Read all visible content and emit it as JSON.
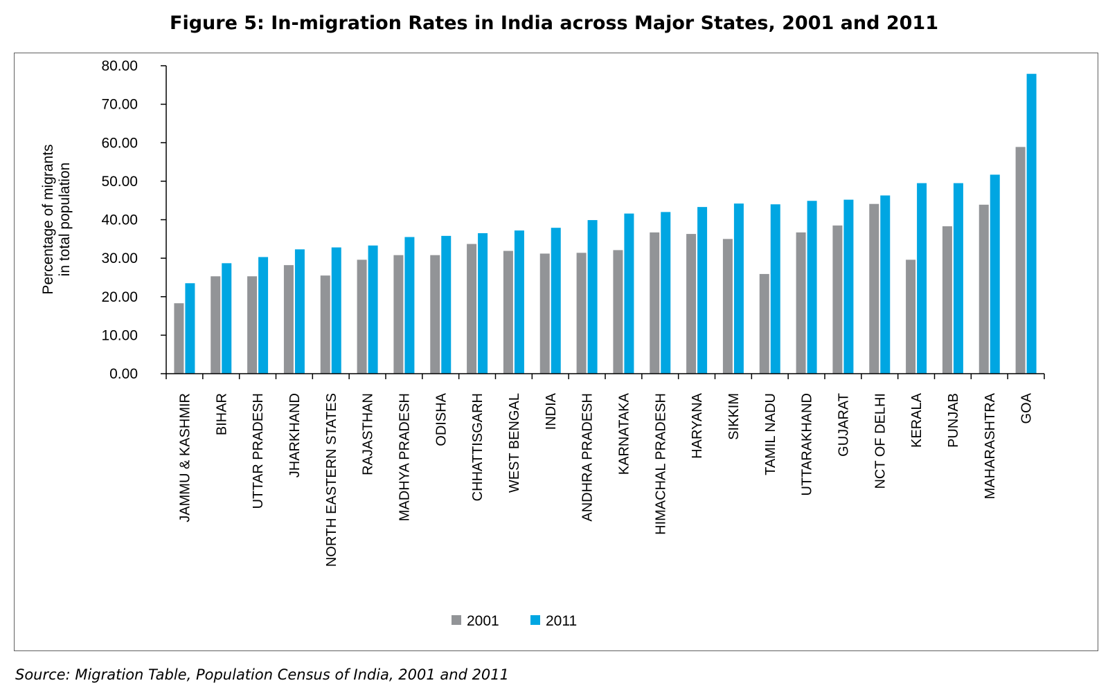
{
  "title": "Figure 5: In-migration Rates in India across Major States, 2001 and 2011",
  "source": "Source: Migration Table, Population Census of India, 2001 and 2011",
  "colors": {
    "s2001": "#929497",
    "s2011": "#00a6e2",
    "axis": "#000000",
    "frame": "#5f5f5f"
  },
  "chart_data": {
    "type": "bar",
    "ylabel": [
      "Percentage of migrants",
      "in total population"
    ],
    "xlabel": "",
    "ylim": [
      0,
      80
    ],
    "yticks": [
      "0.00",
      "10.00",
      "20.00",
      "30.00",
      "40.00",
      "50.00",
      "60.00",
      "70.00",
      "80.00"
    ],
    "legend_position": "bottom",
    "grid": false,
    "categories": [
      "JAMMU & KASHMIR",
      "BIHAR",
      "UTTAR PRADESH",
      "JHARKHAND",
      "NORTH EASTERN STATES",
      "RAJASTHAN",
      "MADHYA PRADESH",
      "ODISHA",
      "CHHATTISGARH",
      "WEST BENGAL",
      "INDIA",
      "ANDHRA PRADESH",
      "KARNATAKA",
      "HIMACHAL PRADESH",
      "HARYANA",
      "SIKKIM",
      "TAMIL NADU",
      "UTTARAKHAND",
      "GUJARAT",
      "NCT OF DELHI",
      "KERALA",
      "PUNJAB",
      "MAHARASHTRA",
      "GOA"
    ],
    "series": [
      {
        "name": "2001",
        "values": [
          18.3,
          25.3,
          25.3,
          28.2,
          25.5,
          29.6,
          30.8,
          30.8,
          33.7,
          31.9,
          31.2,
          31.4,
          32.1,
          36.7,
          36.3,
          35.0,
          25.9,
          36.7,
          38.5,
          44.1,
          29.6,
          38.3,
          43.9,
          58.9
        ]
      },
      {
        "name": "2011",
        "values": [
          23.5,
          28.7,
          30.3,
          32.3,
          32.8,
          33.3,
          35.5,
          35.8,
          36.5,
          37.2,
          37.9,
          39.9,
          41.6,
          42.0,
          43.3,
          44.2,
          44.0,
          44.9,
          45.2,
          46.3,
          49.5,
          49.5,
          51.7,
          77.9
        ]
      }
    ]
  }
}
